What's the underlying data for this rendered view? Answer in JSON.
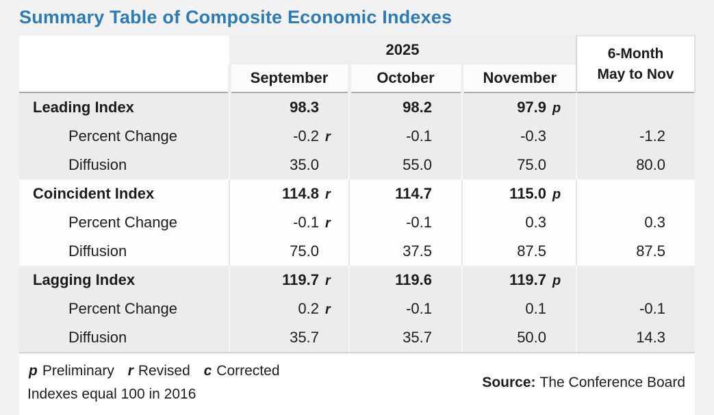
{
  "colors": {
    "title_accent": "#2d7bb5",
    "band_gray": "#ececec",
    "band_white": "#fdfdfd",
    "page_background": "#f2f2f2",
    "header_rule": "#ababab"
  },
  "chart_data": {
    "type": "table",
    "title": "Summary Table of Composite Economic Indexes",
    "header": {
      "year": "2025",
      "months": [
        "September",
        "October",
        "November"
      ],
      "range_line1": "6-Month",
      "range_line2": "May to Nov"
    },
    "sections": [
      {
        "name": "Leading Index",
        "rows": [
          {
            "label": "Leading Index",
            "cells": [
              {
                "v": "98.3",
                "f": ""
              },
              {
                "v": "98.2",
                "f": ""
              },
              {
                "v": "97.9",
                "f": "p"
              },
              {
                "v": "",
                "f": ""
              }
            ]
          },
          {
            "label": "Percent Change",
            "cells": [
              {
                "v": "-0.2",
                "f": "r"
              },
              {
                "v": "-0.1",
                "f": ""
              },
              {
                "v": "-0.3",
                "f": ""
              },
              {
                "v": "-1.2",
                "f": ""
              }
            ]
          },
          {
            "label": "Diffusion",
            "cells": [
              {
                "v": "35.0",
                "f": ""
              },
              {
                "v": "55.0",
                "f": ""
              },
              {
                "v": "75.0",
                "f": ""
              },
              {
                "v": "80.0",
                "f": ""
              }
            ]
          }
        ]
      },
      {
        "name": "Coincident Index",
        "rows": [
          {
            "label": "Coincident Index",
            "cells": [
              {
                "v": "114.8",
                "f": "r"
              },
              {
                "v": "114.7",
                "f": ""
              },
              {
                "v": "115.0",
                "f": "p"
              },
              {
                "v": "",
                "f": ""
              }
            ]
          },
          {
            "label": "Percent Change",
            "cells": [
              {
                "v": "-0.1",
                "f": "r"
              },
              {
                "v": "-0.1",
                "f": ""
              },
              {
                "v": "0.3",
                "f": ""
              },
              {
                "v": "0.3",
                "f": ""
              }
            ]
          },
          {
            "label": "Diffusion",
            "cells": [
              {
                "v": "75.0",
                "f": ""
              },
              {
                "v": "37.5",
                "f": ""
              },
              {
                "v": "87.5",
                "f": ""
              },
              {
                "v": "87.5",
                "f": ""
              }
            ]
          }
        ]
      },
      {
        "name": "Lagging Index",
        "rows": [
          {
            "label": "Lagging Index",
            "cells": [
              {
                "v": "119.7",
                "f": "r"
              },
              {
                "v": "119.6",
                "f": ""
              },
              {
                "v": "119.7",
                "f": "p"
              },
              {
                "v": "",
                "f": ""
              }
            ]
          },
          {
            "label": "Percent Change",
            "cells": [
              {
                "v": "0.2",
                "f": "r"
              },
              {
                "v": "-0.1",
                "f": ""
              },
              {
                "v": "0.1",
                "f": ""
              },
              {
                "v": "-0.1",
                "f": ""
              }
            ]
          },
          {
            "label": "Diffusion",
            "cells": [
              {
                "v": "35.7",
                "f": ""
              },
              {
                "v": "35.7",
                "f": ""
              },
              {
                "v": "50.0",
                "f": ""
              },
              {
                "v": "14.3",
                "f": ""
              }
            ]
          }
        ]
      }
    ],
    "footnotes": {
      "flags": [
        {
          "letter": "p",
          "label": "Preliminary"
        },
        {
          "letter": "r",
          "label": "Revised"
        },
        {
          "letter": "c",
          "label": "Corrected"
        }
      ],
      "base_note": "Indexes equal 100 in 2016",
      "source_label": "Source:",
      "source_value": "The Conference Board"
    }
  }
}
